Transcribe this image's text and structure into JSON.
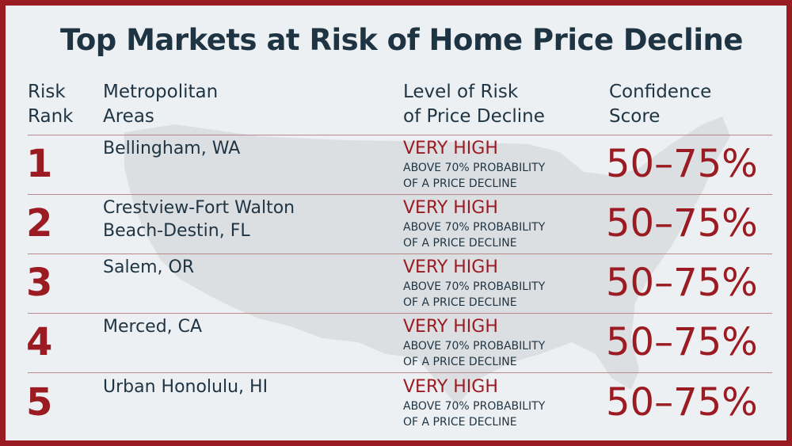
{
  "title": "Top Markets at Risk of Home Price Decline",
  "headers": {
    "rank": "Risk\nRank",
    "metro": "Metropolitan\nAreas",
    "risk": "Level of Risk\nof Price Decline",
    "confidence": "Confidence\nScore"
  },
  "rows": [
    {
      "rank": "1",
      "metro": "Bellingham, WA",
      "risk": "VERY HIGH",
      "risk_detail": "ABOVE 70% PROBABILITY\nOF A PRICE DECLINE",
      "confidence": "50–75%"
    },
    {
      "rank": "2",
      "metro": "Crestview-Fort Walton\nBeach-Destin, FL",
      "risk": "VERY HIGH",
      "risk_detail": "ABOVE 70% PROBABILITY\nOF A PRICE DECLINE",
      "confidence": "50–75%"
    },
    {
      "rank": "3",
      "metro": "Salem, OR",
      "risk": "VERY HIGH",
      "risk_detail": "ABOVE 70% PROBABILITY\nOF A PRICE DECLINE",
      "confidence": "50–75%"
    },
    {
      "rank": "4",
      "metro": "Merced, CA",
      "risk": "VERY HIGH",
      "risk_detail": "ABOVE 70% PROBABILITY\nOF A PRICE DECLINE",
      "confidence": "50–75%"
    },
    {
      "rank": "5",
      "metro": "Urban Honolulu, HI",
      "risk": "VERY HIGH",
      "risk_detail": "ABOVE 70% PROBABILITY\nOF A PRICE DECLINE",
      "confidence": "50–75%"
    }
  ],
  "colors": {
    "accent": "#9b1b22",
    "text": "#1f3443",
    "background": "#edf0f2",
    "map": "#dcdfe2"
  }
}
